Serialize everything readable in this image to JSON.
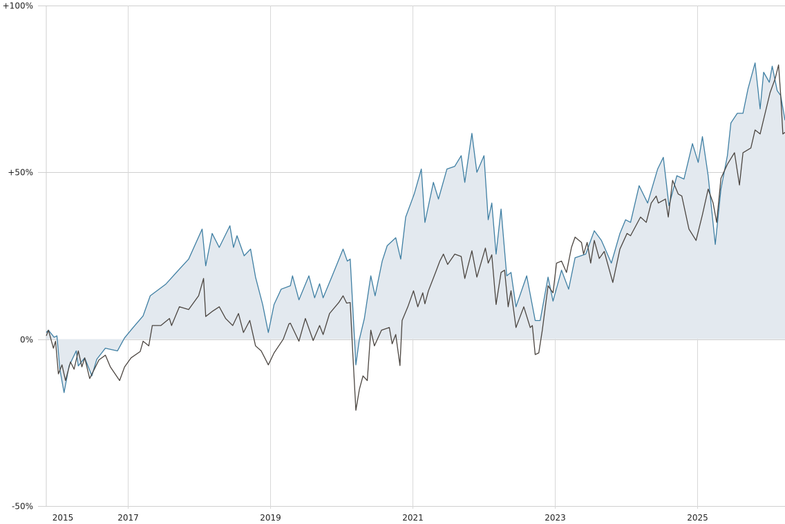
{
  "chart_data": {
    "type": "line",
    "title": "",
    "xlabel": "",
    "ylabel": "",
    "xlim": [
      2015.85,
      2026.23
    ],
    "ylim": [
      -50,
      100
    ],
    "grid": true,
    "x_ticks": [
      2015,
      2017,
      2019,
      2021,
      2023,
      2025
    ],
    "x_tick_labels": [
      "2015",
      "2017",
      "2019",
      "2021",
      "2023",
      "2025"
    ],
    "y_ticks": [
      -50,
      0,
      50,
      100
    ],
    "y_tick_labels": [
      "-50%",
      "0%",
      "+50%",
      "+100%"
    ],
    "colors": {
      "series_a": "#3f7fa3",
      "series_a_fill": "#e3e9ef",
      "series_b": "#4b4540",
      "grid": "#cfcfcf"
    },
    "series": [
      {
        "fill_to_zero": true,
        "points": [
          [
            2015.85,
            2
          ],
          [
            2015.88,
            2.7
          ],
          [
            2015.96,
            0.6
          ],
          [
            2016.0,
            1
          ],
          [
            2016.04,
            -9
          ],
          [
            2016.1,
            -16
          ],
          [
            2016.17,
            -8
          ],
          [
            2016.27,
            -3.5
          ],
          [
            2016.3,
            -8
          ],
          [
            2016.39,
            -5.6
          ],
          [
            2016.49,
            -11
          ],
          [
            2016.56,
            -6
          ],
          [
            2016.68,
            -2.7
          ],
          [
            2016.85,
            -3.5
          ],
          [
            2016.95,
            0.4
          ],
          [
            2017.07,
            3.5
          ],
          [
            2017.21,
            7
          ],
          [
            2017.31,
            13
          ],
          [
            2017.53,
            16.5
          ],
          [
            2017.72,
            21
          ],
          [
            2017.85,
            24
          ],
          [
            2018.04,
            33
          ],
          [
            2018.09,
            22
          ],
          [
            2018.18,
            31.7
          ],
          [
            2018.28,
            27.5
          ],
          [
            2018.43,
            34
          ],
          [
            2018.48,
            27.5
          ],
          [
            2018.53,
            31
          ],
          [
            2018.63,
            25
          ],
          [
            2018.72,
            27
          ],
          [
            2018.79,
            18.6
          ],
          [
            2018.89,
            10.4
          ],
          [
            2018.97,
            2
          ],
          [
            2019.05,
            10.4
          ],
          [
            2019.15,
            15
          ],
          [
            2019.28,
            16
          ],
          [
            2019.31,
            19
          ],
          [
            2019.4,
            11.8
          ],
          [
            2019.54,
            19
          ],
          [
            2019.62,
            12.4
          ],
          [
            2019.69,
            16.6
          ],
          [
            2019.74,
            12.4
          ],
          [
            2019.86,
            18.6
          ],
          [
            2020.02,
            27
          ],
          [
            2020.08,
            23.4
          ],
          [
            2020.12,
            24
          ],
          [
            2020.2,
            -7.7
          ],
          [
            2020.25,
            0
          ],
          [
            2020.32,
            6.2
          ],
          [
            2020.41,
            19
          ],
          [
            2020.47,
            13
          ],
          [
            2020.57,
            23.4
          ],
          [
            2020.64,
            28
          ],
          [
            2020.76,
            30.4
          ],
          [
            2020.83,
            24
          ],
          [
            2020.9,
            36.6
          ],
          [
            2021.02,
            43.5
          ],
          [
            2021.12,
            51
          ],
          [
            2021.17,
            35
          ],
          [
            2021.29,
            47
          ],
          [
            2021.36,
            42
          ],
          [
            2021.48,
            51
          ],
          [
            2021.59,
            51.8
          ],
          [
            2021.68,
            55
          ],
          [
            2021.73,
            47
          ],
          [
            2021.83,
            61.7
          ],
          [
            2021.9,
            50
          ],
          [
            2022.0,
            55
          ],
          [
            2022.06,
            35.8
          ],
          [
            2022.11,
            40.8
          ],
          [
            2022.17,
            25.5
          ],
          [
            2022.24,
            39
          ],
          [
            2022.32,
            19
          ],
          [
            2022.38,
            20
          ],
          [
            2022.45,
            9.7
          ],
          [
            2022.6,
            19
          ],
          [
            2022.72,
            5.6
          ],
          [
            2022.79,
            5.6
          ],
          [
            2022.9,
            18.6
          ],
          [
            2022.97,
            11.4
          ],
          [
            2023.09,
            20.7
          ],
          [
            2023.19,
            15
          ],
          [
            2023.28,
            24.4
          ],
          [
            2023.43,
            25.5
          ],
          [
            2023.55,
            32.5
          ],
          [
            2023.65,
            29.6
          ],
          [
            2023.79,
            22.8
          ],
          [
            2023.91,
            31.7
          ],
          [
            2023.99,
            35.8
          ],
          [
            2024.06,
            35
          ],
          [
            2024.18,
            46
          ],
          [
            2024.3,
            40.8
          ],
          [
            2024.44,
            51
          ],
          [
            2024.52,
            54.5
          ],
          [
            2024.6,
            40
          ],
          [
            2024.71,
            49
          ],
          [
            2024.81,
            48
          ],
          [
            2024.93,
            58.6
          ],
          [
            2025.01,
            53
          ],
          [
            2025.07,
            60.7
          ],
          [
            2025.15,
            49
          ],
          [
            2025.25,
            28.4
          ],
          [
            2025.33,
            45
          ],
          [
            2025.42,
            55
          ],
          [
            2025.47,
            64.8
          ],
          [
            2025.56,
            67.7
          ],
          [
            2025.64,
            67.7
          ],
          [
            2025.71,
            75
          ],
          [
            2025.81,
            82.8
          ],
          [
            2025.88,
            69
          ],
          [
            2025.93,
            80
          ],
          [
            2026.01,
            77
          ],
          [
            2026.05,
            81.8
          ],
          [
            2026.12,
            74.5
          ],
          [
            2026.17,
            73
          ],
          [
            2026.23,
            65.6
          ]
        ]
      },
      {
        "fill_to_zero": false,
        "points": [
          [
            2015.85,
            1
          ],
          [
            2015.88,
            2.7
          ],
          [
            2015.95,
            -2.7
          ],
          [
            2015.98,
            -0.6
          ],
          [
            2016.02,
            -10.4
          ],
          [
            2016.07,
            -7.7
          ],
          [
            2016.12,
            -12.4
          ],
          [
            2016.19,
            -6.8
          ],
          [
            2016.24,
            -9
          ],
          [
            2016.3,
            -3.5
          ],
          [
            2016.35,
            -8.3
          ],
          [
            2016.39,
            -5.6
          ],
          [
            2016.46,
            -11.8
          ],
          [
            2016.59,
            -6.2
          ],
          [
            2016.68,
            -4.8
          ],
          [
            2016.75,
            -8.3
          ],
          [
            2016.88,
            -12.4
          ],
          [
            2016.95,
            -8.3
          ],
          [
            2017.04,
            -5.6
          ],
          [
            2017.17,
            -3.7
          ],
          [
            2017.21,
            -0.6
          ],
          [
            2017.29,
            -2
          ],
          [
            2017.34,
            4.1
          ],
          [
            2017.46,
            4.1
          ],
          [
            2017.58,
            6.2
          ],
          [
            2017.61,
            4.1
          ],
          [
            2017.72,
            9.7
          ],
          [
            2017.85,
            8.9
          ],
          [
            2017.99,
            13
          ],
          [
            2018.06,
            18.2
          ],
          [
            2018.09,
            6.8
          ],
          [
            2018.18,
            8.3
          ],
          [
            2018.28,
            9.7
          ],
          [
            2018.37,
            6.2
          ],
          [
            2018.47,
            4.1
          ],
          [
            2018.55,
            7.7
          ],
          [
            2018.62,
            2
          ],
          [
            2018.71,
            5.6
          ],
          [
            2018.79,
            -2
          ],
          [
            2018.87,
            -3.5
          ],
          [
            2018.97,
            -7.7
          ],
          [
            2019.05,
            -4.1
          ],
          [
            2019.18,
            0
          ],
          [
            2019.26,
            4.6
          ],
          [
            2019.28,
            4.8
          ],
          [
            2019.4,
            -0.6
          ],
          [
            2019.49,
            6.2
          ],
          [
            2019.6,
            -0.4
          ],
          [
            2019.69,
            4.1
          ],
          [
            2019.74,
            1.4
          ],
          [
            2019.83,
            7.7
          ],
          [
            2019.96,
            11
          ],
          [
            2020.02,
            13
          ],
          [
            2020.07,
            10.8
          ],
          [
            2020.12,
            11
          ],
          [
            2020.15,
            -1.4
          ],
          [
            2020.2,
            -21.3
          ],
          [
            2020.25,
            -15
          ],
          [
            2020.3,
            -11
          ],
          [
            2020.36,
            -12.4
          ],
          [
            2020.41,
            2.7
          ],
          [
            2020.46,
            -2
          ],
          [
            2020.56,
            2.7
          ],
          [
            2020.67,
            3.5
          ],
          [
            2020.71,
            -1.4
          ],
          [
            2020.76,
            1.4
          ],
          [
            2020.82,
            -7.9
          ],
          [
            2020.85,
            5.6
          ],
          [
            2020.93,
            9.7
          ],
          [
            2021.01,
            14.5
          ],
          [
            2021.07,
            9.7
          ],
          [
            2021.14,
            13.9
          ],
          [
            2021.17,
            10.6
          ],
          [
            2021.22,
            14.5
          ],
          [
            2021.32,
            20
          ],
          [
            2021.38,
            23.4
          ],
          [
            2021.43,
            25.5
          ],
          [
            2021.49,
            22.4
          ],
          [
            2021.59,
            25.5
          ],
          [
            2021.68,
            24.8
          ],
          [
            2021.73,
            18.2
          ],
          [
            2021.83,
            26.5
          ],
          [
            2021.9,
            18.6
          ],
          [
            2022.02,
            27.3
          ],
          [
            2022.06,
            22.8
          ],
          [
            2022.11,
            25.3
          ],
          [
            2022.17,
            10.4
          ],
          [
            2022.24,
            20
          ],
          [
            2022.29,
            20.7
          ],
          [
            2022.34,
            9.7
          ],
          [
            2022.38,
            14.5
          ],
          [
            2022.45,
            3.5
          ],
          [
            2022.56,
            9.7
          ],
          [
            2022.65,
            3.5
          ],
          [
            2022.68,
            4.1
          ],
          [
            2022.72,
            -4.6
          ],
          [
            2022.77,
            -4.1
          ],
          [
            2022.82,
            2.7
          ],
          [
            2022.9,
            16
          ],
          [
            2022.97,
            13.9
          ],
          [
            2023.02,
            22.8
          ],
          [
            2023.09,
            23.4
          ],
          [
            2023.16,
            20
          ],
          [
            2023.23,
            27.5
          ],
          [
            2023.28,
            30.6
          ],
          [
            2023.37,
            29
          ],
          [
            2023.4,
            25.5
          ],
          [
            2023.45,
            29
          ],
          [
            2023.5,
            22.8
          ],
          [
            2023.55,
            29.6
          ],
          [
            2023.62,
            24.2
          ],
          [
            2023.69,
            26.3
          ],
          [
            2023.81,
            17
          ],
          [
            2023.91,
            27
          ],
          [
            2024.01,
            31.7
          ],
          [
            2024.06,
            31
          ],
          [
            2024.2,
            36.6
          ],
          [
            2024.28,
            35
          ],
          [
            2024.35,
            40.8
          ],
          [
            2024.42,
            42.9
          ],
          [
            2024.45,
            40.8
          ],
          [
            2024.55,
            42
          ],
          [
            2024.59,
            36.6
          ],
          [
            2024.65,
            47.6
          ],
          [
            2024.73,
            43.5
          ],
          [
            2024.78,
            42.9
          ],
          [
            2024.88,
            33
          ],
          [
            2024.98,
            29.6
          ],
          [
            2025.07,
            37.3
          ],
          [
            2025.15,
            45
          ],
          [
            2025.22,
            40.8
          ],
          [
            2025.27,
            35
          ],
          [
            2025.33,
            48.2
          ],
          [
            2025.42,
            52.4
          ],
          [
            2025.52,
            55.9
          ],
          [
            2025.59,
            46.2
          ],
          [
            2025.64,
            55.9
          ],
          [
            2025.75,
            57.3
          ],
          [
            2025.81,
            62.7
          ],
          [
            2025.88,
            61.5
          ],
          [
            2025.95,
            67.7
          ],
          [
            2026.02,
            73.9
          ],
          [
            2026.09,
            78
          ],
          [
            2026.14,
            82.2
          ],
          [
            2026.17,
            73
          ],
          [
            2026.2,
            61.5
          ],
          [
            2026.23,
            62
          ]
        ]
      }
    ]
  }
}
